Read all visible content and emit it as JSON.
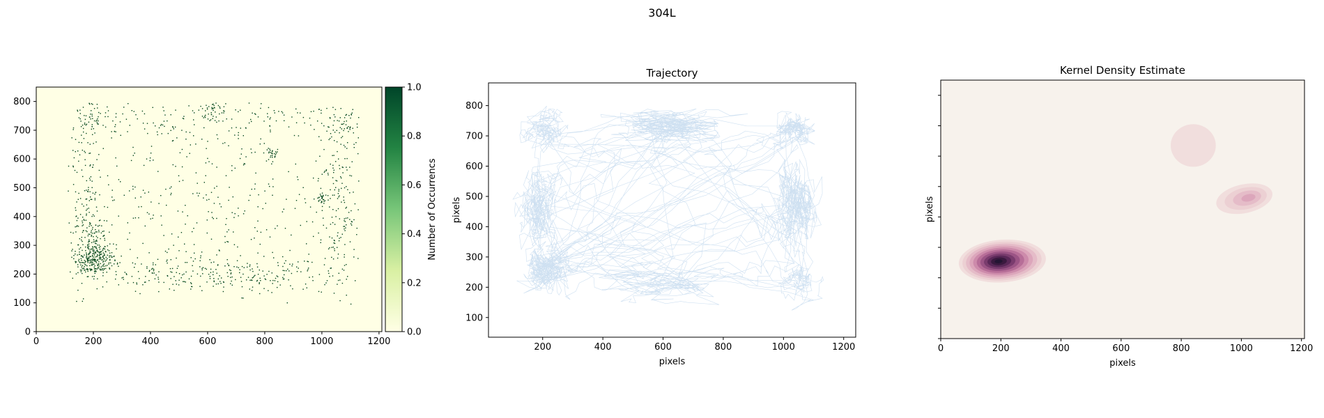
{
  "figure": {
    "suptitle": "304L"
  },
  "chart_data": [
    {
      "type": "heatmap",
      "title": "",
      "xlabel": "",
      "ylabel": "",
      "xlim": [
        0,
        1210
      ],
      "ylim": [
        0,
        850
      ],
      "xticks": [
        0,
        200,
        400,
        600,
        800,
        1000,
        1200
      ],
      "yticks": [
        0,
        100,
        200,
        300,
        400,
        500,
        600,
        700,
        800
      ],
      "colormap": "YlGn",
      "colorbar": {
        "label": "Number of Occurrencs",
        "range": [
          0,
          1.0
        ],
        "ticks": [
          "0.0",
          "0.2",
          "0.4",
          "0.6",
          "0.8",
          "1.0"
        ],
        "low_color": "#ffffe5",
        "high_color": "#004529"
      },
      "background_color": "#ffffe5",
      "point_color": "#00441b",
      "occupancy_clusters": [
        {
          "x": 205,
          "y": 255,
          "sd_x": 35,
          "sd_y": 30,
          "n": 260
        },
        {
          "x": 200,
          "y": 340,
          "sd_x": 30,
          "sd_y": 35,
          "n": 60
        },
        {
          "x": 200,
          "y": 740,
          "sd_x": 50,
          "sd_y": 30,
          "n": 60
        },
        {
          "x": 1000,
          "y": 460,
          "sd_x": 12,
          "sd_y": 15,
          "n": 30
        },
        {
          "x": 825,
          "y": 620,
          "sd_x": 12,
          "sd_y": 15,
          "n": 25
        },
        {
          "x": 1070,
          "y": 720,
          "sd_x": 35,
          "sd_y": 30,
          "n": 50
        },
        {
          "x": 620,
          "y": 765,
          "sd_x": 40,
          "sd_y": 20,
          "n": 35
        },
        {
          "x": 450,
          "y": 720,
          "sd_x": 25,
          "sd_y": 25,
          "n": 20
        },
        {
          "x": 600,
          "y": 200,
          "sd_x": 300,
          "sd_y": 30,
          "n": 300
        },
        {
          "x": 170,
          "y": 470,
          "sd_x": 30,
          "sd_y": 180,
          "n": 170
        },
        {
          "x": 1060,
          "y": 450,
          "sd_x": 35,
          "sd_y": 170,
          "n": 160
        },
        {
          "x": 620,
          "y": 740,
          "sd_x": 330,
          "sd_y": 30,
          "n": 120
        },
        {
          "x": 620,
          "y": 460,
          "sd_x": 300,
          "sd_y": 170,
          "n": 380
        }
      ]
    },
    {
      "type": "line",
      "title": "Trajectory",
      "xlabel": "pixels",
      "ylabel": "pixels",
      "xlim": [
        20,
        1240
      ],
      "ylim": [
        35,
        875
      ],
      "xticks": [
        200,
        400,
        600,
        800,
        1000,
        1200
      ],
      "yticks": [
        100,
        200,
        300,
        400,
        500,
        600,
        700,
        800
      ],
      "grid": false,
      "series_color": "#c6dbef",
      "trajectory_bounds": {
        "x": [
          60,
          1170
        ],
        "y": [
          70,
          800
        ]
      }
    },
    {
      "type": "heatmap",
      "title": "Kernel Density Estimate",
      "xlabel": "pixels",
      "ylabel": "pixels",
      "xlim": [
        0,
        1210
      ],
      "ylim": [
        0,
        850
      ],
      "xticks": [
        0,
        200,
        400,
        600,
        800,
        1000,
        1200
      ],
      "colormap": "pink-purple",
      "background_color": "#f7f2ec",
      "level_colors": [
        "#f1dedd",
        "#ecd0d3",
        "#e5bcc8",
        "#dca6bb",
        "#cd8bab",
        "#b76e98",
        "#9b5485",
        "#7a3c6e",
        "#5a2858",
        "#3a1a3f",
        "#241533"
      ],
      "density_peaks": [
        {
          "x": 205,
          "y": 255,
          "levels": 11,
          "outer_rx": 290,
          "outer_ry": 140,
          "rotate": -4
        },
        {
          "x": 1010,
          "y": 460,
          "levels": 4,
          "outer_rx": 190,
          "outer_ry": 95,
          "rotate": -12
        }
      ],
      "extra_low_region": {
        "x": 840,
        "y": 635,
        "rx": 150,
        "ry": 140
      }
    }
  ]
}
